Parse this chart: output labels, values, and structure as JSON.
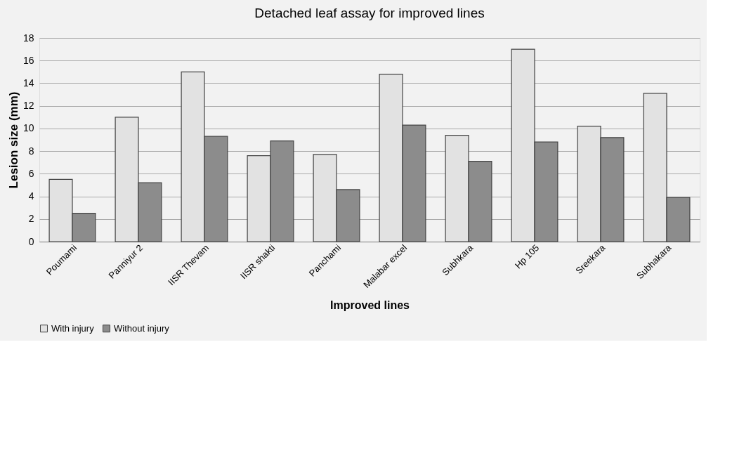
{
  "chart_data": {
    "type": "bar",
    "title": "Detached leaf assay for improved lines",
    "xlabel": "Improved lines",
    "ylabel": "Lesion size (mm)",
    "categories": [
      "Poumami",
      "Panniyur 2",
      "IISR Thevam",
      "IISR shakti",
      "Panchami",
      "Malabar excel",
      "Subhkara",
      "Hp 105",
      "Sreekara",
      "Subhakara"
    ],
    "series": [
      {
        "name": "With injury",
        "color": "#e2e2e2",
        "values": [
          5.5,
          11,
          15,
          7.6,
          7.7,
          14.8,
          9.4,
          17,
          10.2,
          13.1
        ]
      },
      {
        "name": "Without injury",
        "color": "#8c8c8c",
        "values": [
          2.5,
          5.2,
          9.3,
          8.9,
          4.6,
          10.3,
          7.1,
          8.8,
          9.2,
          3.9
        ]
      }
    ],
    "ylim": [
      0,
      18
    ],
    "yticks": [
      0,
      2,
      4,
      6,
      8,
      10,
      12,
      14,
      16,
      18
    ],
    "grid": "y",
    "legend": "bottom"
  }
}
